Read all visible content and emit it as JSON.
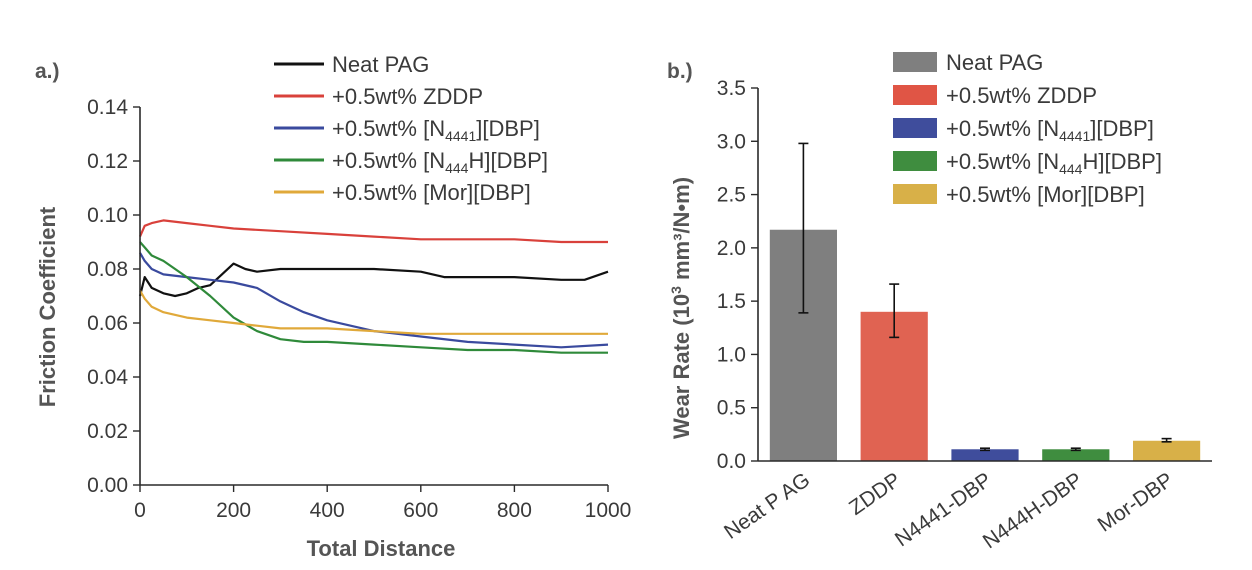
{
  "chart_data": [
    {
      "type": "line",
      "panel_label": "a.)",
      "xlabel": "Total Distance",
      "ylabel": "Friction Coefficient",
      "xlim": [
        0,
        1000
      ],
      "ylim": [
        0,
        0.14
      ],
      "xticks": [
        0,
        200,
        400,
        600,
        800,
        1000
      ],
      "yticks": [
        "0.00",
        "0.02",
        "0.04",
        "0.06",
        "0.08",
        "0.10",
        "0.12",
        "0.14"
      ],
      "legend_position": "top-right",
      "series": [
        {
          "name_main": "Neat PAG",
          "name_sub": "",
          "name_tail": "",
          "color": "#111111",
          "x": [
            0,
            10,
            25,
            50,
            75,
            100,
            125,
            150,
            175,
            200,
            225,
            250,
            300,
            400,
            500,
            600,
            650,
            700,
            800,
            900,
            950,
            1000
          ],
          "y": [
            0.07,
            0.077,
            0.073,
            0.071,
            0.07,
            0.071,
            0.073,
            0.074,
            0.078,
            0.082,
            0.08,
            0.079,
            0.08,
            0.08,
            0.08,
            0.079,
            0.077,
            0.077,
            0.077,
            0.076,
            0.076,
            0.079
          ]
        },
        {
          "name_main": "+0.5wt% ZDDP",
          "name_sub": "",
          "name_tail": "",
          "color": "#d9413b",
          "x": [
            0,
            10,
            25,
            50,
            100,
            150,
            200,
            300,
            400,
            500,
            600,
            700,
            800,
            900,
            1000
          ],
          "y": [
            0.092,
            0.096,
            0.097,
            0.098,
            0.097,
            0.096,
            0.095,
            0.094,
            0.093,
            0.092,
            0.091,
            0.091,
            0.091,
            0.09,
            0.09
          ]
        },
        {
          "name_main": "+0.5wt% [N",
          "name_sub": "4441",
          "name_tail": "][DBP]",
          "color": "#3a4a9e",
          "x": [
            0,
            10,
            25,
            50,
            100,
            150,
            200,
            250,
            300,
            350,
            400,
            450,
            500,
            600,
            700,
            800,
            900,
            1000
          ],
          "y": [
            0.086,
            0.083,
            0.08,
            0.078,
            0.077,
            0.076,
            0.075,
            0.073,
            0.068,
            0.064,
            0.061,
            0.059,
            0.057,
            0.055,
            0.053,
            0.052,
            0.051,
            0.052
          ]
        },
        {
          "name_main": "+0.5wt% [N",
          "name_sub": "444",
          "name_tail": "H][DBP]",
          "color": "#2f8a3a",
          "x": [
            0,
            10,
            25,
            50,
            100,
            150,
            200,
            250,
            300,
            350,
            400,
            500,
            600,
            700,
            800,
            900,
            1000
          ],
          "y": [
            0.09,
            0.088,
            0.085,
            0.083,
            0.077,
            0.07,
            0.062,
            0.057,
            0.054,
            0.053,
            0.053,
            0.052,
            0.051,
            0.05,
            0.05,
            0.049,
            0.049
          ]
        },
        {
          "name_main": "+0.5wt% [Mor][DBP]",
          "name_sub": "",
          "name_tail": "",
          "color": "#e0a93a",
          "x": [
            0,
            10,
            25,
            50,
            100,
            150,
            200,
            250,
            300,
            400,
            500,
            600,
            700,
            800,
            900,
            1000
          ],
          "y": [
            0.072,
            0.069,
            0.066,
            0.064,
            0.062,
            0.061,
            0.06,
            0.059,
            0.058,
            0.058,
            0.057,
            0.056,
            0.056,
            0.056,
            0.056,
            0.056
          ]
        }
      ]
    },
    {
      "type": "bar",
      "panel_label": "b.)",
      "ylabel_main": "Wear Rate (10",
      "ylabel_sup": "3",
      "ylabel_tail": " mm³/N•m)",
      "ylim": [
        0,
        3.5
      ],
      "yticks": [
        "0.0",
        "0.5",
        "1.0",
        "1.5",
        "2.0",
        "2.5",
        "3.0",
        "3.5"
      ],
      "categories": [
        "Neat P AG",
        "ZDDP",
        "N4441-DBP",
        "N444H-DBP",
        "Mor-DBP"
      ],
      "values": [
        2.17,
        1.4,
        0.11,
        0.11,
        0.19
      ],
      "error_low": [
        1.39,
        1.16,
        0.1,
        0.1,
        0.18
      ],
      "error_high": [
        2.98,
        1.66,
        0.12,
        0.12,
        0.21
      ],
      "colors": [
        "#7f7f7f",
        "#e06352",
        "#3f4d9c",
        "#3f8d3f",
        "#d8b048"
      ],
      "legend_position": "top-right",
      "legend": [
        {
          "main": "Neat PAG",
          "sub": "",
          "tail": "",
          "color": "#7f7f7f"
        },
        {
          "main": "+0.5wt% ZDDP",
          "sub": "",
          "tail": "",
          "color": "#e05545"
        },
        {
          "main": "+0.5wt% [N",
          "sub": "4441",
          "tail": "][DBP]",
          "color": "#3f4d9c"
        },
        {
          "main": "+0.5wt% [N",
          "sub": "444",
          "tail": "H][DBP]",
          "color": "#3f8d3f"
        },
        {
          "main": "+0.5wt% [Mor][DBP]",
          "sub": "",
          "tail": "",
          "color": "#d8b048"
        }
      ]
    }
  ]
}
